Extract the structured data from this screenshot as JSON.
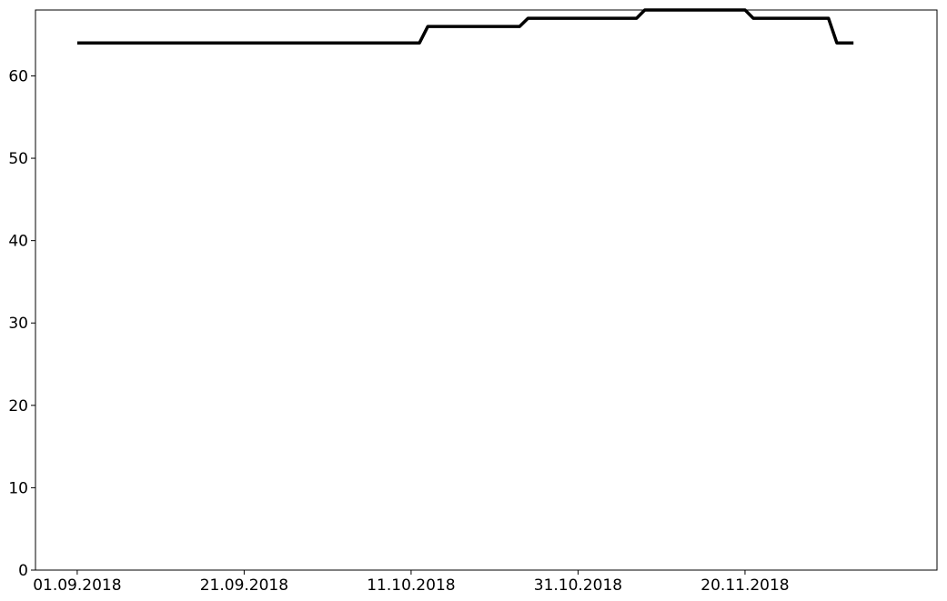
{
  "chart_data": {
    "type": "line",
    "title": "",
    "xlabel": "",
    "ylabel": "",
    "x_axis_type": "date",
    "xlim": [
      "2018-08-27",
      "2018-12-13"
    ],
    "ylim": [
      0,
      68
    ],
    "grid": false,
    "legend": "none",
    "x_ticks": [
      {
        "date": "2018-09-01",
        "label": "01.09.2018"
      },
      {
        "date": "2018-09-21",
        "label": "21.09.2018"
      },
      {
        "date": "2018-10-11",
        "label": "11.10.2018"
      },
      {
        "date": "2018-10-31",
        "label": "31.10.2018"
      },
      {
        "date": "2018-11-20",
        "label": "20.11.2018"
      }
    ],
    "y_ticks": [
      {
        "value": 0,
        "label": "0"
      },
      {
        "value": 10,
        "label": "10"
      },
      {
        "value": 20,
        "label": "20"
      },
      {
        "value": 30,
        "label": "30"
      },
      {
        "value": 40,
        "label": "40"
      },
      {
        "value": 50,
        "label": "50"
      },
      {
        "value": 60,
        "label": "60"
      }
    ],
    "series": [
      {
        "color": "#000000",
        "points": [
          {
            "x": "2018-09-01",
            "y": 64
          },
          {
            "x": "2018-10-12",
            "y": 64
          },
          {
            "x": "2018-10-13",
            "y": 66
          },
          {
            "x": "2018-10-24",
            "y": 66
          },
          {
            "x": "2018-10-25",
            "y": 67
          },
          {
            "x": "2018-11-07",
            "y": 67
          },
          {
            "x": "2018-11-08",
            "y": 68
          },
          {
            "x": "2018-11-20",
            "y": 68
          },
          {
            "x": "2018-11-21",
            "y": 67
          },
          {
            "x": "2018-11-30",
            "y": 67
          },
          {
            "x": "2018-12-01",
            "y": 64
          },
          {
            "x": "2018-12-03",
            "y": 64
          }
        ]
      }
    ]
  }
}
